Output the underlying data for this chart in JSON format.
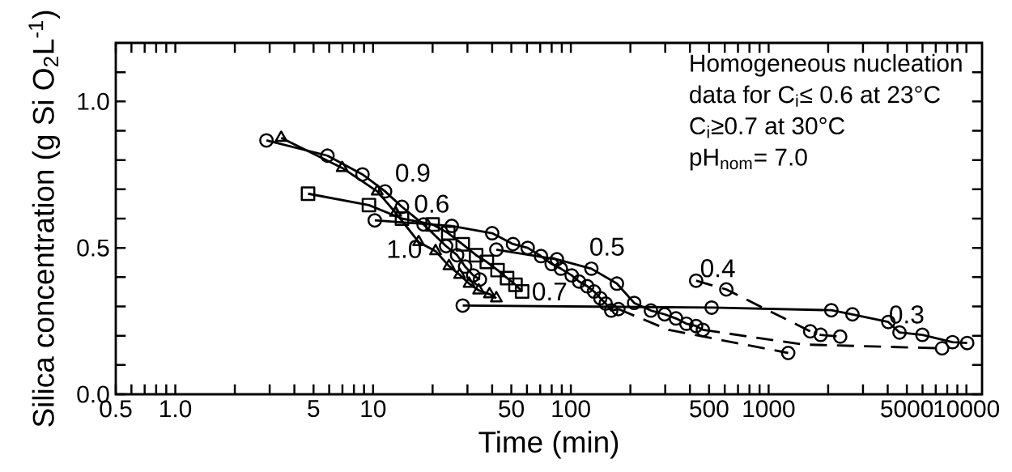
{
  "chart_data": {
    "type": "line",
    "xlabel": "Time (min)",
    "ylabel": "Silica concentration (g Si O$_{2}$L$^{-1}$)",
    "log": "x",
    "xlim": [
      0.5,
      12000
    ],
    "ylim": [
      0,
      1.2
    ],
    "xticks": [
      {
        "value": 0.5,
        "label": "0.5"
      },
      {
        "value": 0.6,
        "label": null
      },
      {
        "value": 0.7,
        "label": null
      },
      {
        "value": 0.8,
        "label": null
      },
      {
        "value": 0.9,
        "label": null
      },
      {
        "value": 1,
        "label": "1.0"
      },
      {
        "value": 2,
        "label": null
      },
      {
        "value": 3,
        "label": null
      },
      {
        "value": 4,
        "label": null
      },
      5,
      {
        "value": 6,
        "label": null
      },
      {
        "value": 7,
        "label": null
      },
      {
        "value": 8,
        "label": null
      },
      {
        "value": 9,
        "label": null
      },
      10,
      {
        "value": 20,
        "label": null
      },
      {
        "value": 30,
        "label": null
      },
      {
        "value": 40,
        "label": null
      },
      50,
      {
        "value": 60,
        "label": null
      },
      {
        "value": 70,
        "label": null
      },
      {
        "value": 80,
        "label": null
      },
      {
        "value": 90,
        "label": null
      },
      100,
      {
        "value": 200,
        "label": null
      },
      {
        "value": 300,
        "label": null
      },
      {
        "value": 400,
        "label": null
      },
      500,
      {
        "value": 600,
        "label": null
      },
      {
        "value": 700,
        "label": null
      },
      {
        "value": 800,
        "label": null
      },
      {
        "value": 900,
        "label": null
      },
      1000,
      {
        "value": 2000,
        "label": null
      },
      {
        "value": 3000,
        "label": null
      },
      {
        "value": 4000,
        "label": null
      },
      5000,
      {
        "value": 6000,
        "label": null
      },
      {
        "value": 7000,
        "label": null
      },
      {
        "value": 8000,
        "label": null
      },
      {
        "value": 9000,
        "label": null
      },
      10000
    ],
    "yticks": [
      {
        "value": 0,
        "label": "0.0"
      },
      {
        "value": 0.1,
        "label": null
      },
      {
        "value": 0.2,
        "label": null
      },
      {
        "value": 0.3,
        "label": null
      },
      {
        "value": 0.4,
        "label": null
      },
      0.5,
      {
        "value": 0.6,
        "label": null
      },
      {
        "value": 0.7,
        "label": null
      },
      {
        "value": 0.8,
        "label": null
      },
      {
        "value": 0.9,
        "label": null
      },
      {
        "value": 1.0,
        "label": "1.0"
      },
      {
        "value": 1.1,
        "label": null
      }
    ],
    "annotations": [
      "Homogeneous nucleation",
      "data for C$_{i}$≤ 0.6 at 23°C",
      "C$_{i}$≥0.7 at 30°C",
      "pH$_{nom}$= 7.0"
    ],
    "series": [
      {
        "name": "0.9",
        "color": "#000000",
        "marker": "circle",
        "line_style": "solid",
        "x": [
          2.89,
          5.88,
          8.84,
          11.5,
          14,
          18,
          23.4,
          26.6,
          29.2,
          32.1,
          34.7
        ],
        "values": [
          0.867,
          0.815,
          0.751,
          0.693,
          0.64,
          0.58,
          0.506,
          0.475,
          0.436,
          0.406,
          0.392
        ]
      },
      {
        "name": "1.0",
        "color": "#000000",
        "marker": "triangle",
        "line_style": "solid",
        "x": [
          3.43,
          6.98,
          10.5,
          13,
          17,
          20.7,
          24.2,
          27.4,
          30.6,
          34.2,
          38.8,
          42.0
        ],
        "values": [
          0.876,
          0.773,
          0.693,
          0.62,
          0.52,
          0.489,
          0.438,
          0.408,
          0.378,
          0.355,
          0.342,
          0.328
        ]
      },
      {
        "name": "0.7",
        "color": "#000000",
        "marker": "square",
        "line_style": "solid",
        "x": [
          4.69,
          9.53,
          14,
          20,
          24,
          28.4,
          33.2,
          37.6,
          42.6,
          47.6,
          52.5,
          56.7
        ],
        "values": [
          0.685,
          0.646,
          0.6,
          0.58,
          0.55,
          0.512,
          0.475,
          0.452,
          0.424,
          0.397,
          0.374,
          0.351
        ]
      },
      {
        "name": "0.6",
        "color": "#000000",
        "marker": "circle",
        "line_style": "solid",
        "x": [
          10.2,
          25,
          40,
          51,
          60.5,
          70.6,
          80,
          89,
          101,
          110,
          121,
          131,
          141,
          150,
          160,
          174
        ],
        "values": [
          0.594,
          0.575,
          0.55,
          0.513,
          0.5,
          0.472,
          0.445,
          0.429,
          0.406,
          0.385,
          0.369,
          0.351,
          0.328,
          0.31,
          0.286,
          0.291
        ]
      },
      {
        "color": "#000000",
        "marker": "none",
        "line_style": "dashed",
        "x": [
          174,
          312,
          1256
        ],
        "values": [
          0.291,
          0.22,
          0.141
        ]
      },
      {
        "name": "0.5",
        "color": "#000000",
        "marker": "circle",
        "line_style": "solid",
        "x": [
          42,
          85,
          127,
          171,
          209,
          254,
          298,
          340,
          384,
          430,
          465
        ],
        "values": [
          0.494,
          0.461,
          0.429,
          0.378,
          0.312,
          0.286,
          0.273,
          0.259,
          0.241,
          0.233,
          0.22
        ]
      },
      {
        "color": "#000000",
        "marker": "none",
        "line_style": "dashed",
        "x": [
          465,
          1500,
          7540
        ],
        "values": [
          0.22,
          0.17,
          0.157
        ]
      },
      {
        "type": "scatter",
        "color": "#000000",
        "marker": "circle",
        "x": [
          1256,
          7540
        ],
        "values": [
          0.141,
          0.157
        ]
      },
      {
        "name": "0.4",
        "color": "#000000",
        "marker": "circle",
        "line_style": "dashed",
        "x": [
          430,
          611,
          1623,
          1833,
          2300
        ],
        "values": [
          0.388,
          0.358,
          0.215,
          0.203,
          0.197
        ]
      },
      {
        "name": "0.3",
        "color": "#000000",
        "marker": "circle",
        "line_style": "solid",
        "x": [
          28.4,
          515,
          2075,
          2654,
          4030,
          4590,
          5990,
          8510,
          10090
        ],
        "values": [
          0.303,
          0.296,
          0.287,
          0.273,
          0.247,
          0.211,
          0.203,
          0.178,
          0.175
        ]
      }
    ]
  }
}
